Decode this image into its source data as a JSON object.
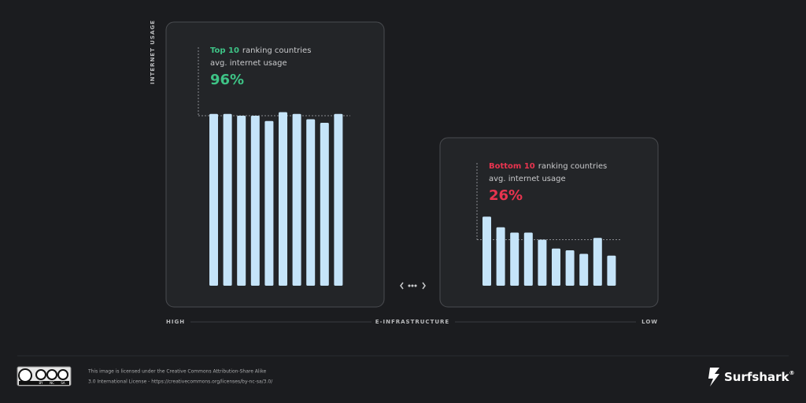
{
  "chart_data": [
    {
      "type": "bar",
      "highlight": "Top 10",
      "title": "ranking countries",
      "subtitle": "avg. internet usage",
      "average": {
        "value": 96,
        "label": "96%"
      },
      "accent": "#3ec386",
      "color": "#c5e4f9",
      "values": [
        97,
        97,
        96,
        96,
        93,
        98,
        97,
        94,
        92,
        97
      ]
    },
    {
      "type": "bar",
      "highlight": "Bottom 10",
      "title": "ranking countries",
      "subtitle": "avg. internet usage",
      "average": {
        "value": 26,
        "label": "26%"
      },
      "accent": "#e8344f",
      "color": "#c5e4f9",
      "values": [
        39,
        33,
        30,
        30,
        26,
        21,
        20,
        18,
        27,
        17
      ]
    }
  ],
  "y_axis_label": "INTERNET USAGE",
  "x_axis": {
    "left": "HIGH",
    "label": "E-INFRASTRUCTURE",
    "right": "LOW"
  },
  "footer": {
    "badge": [
      "BY",
      "NC",
      "SA"
    ],
    "license": [
      "This image is licensed under the Creative Commons Attribution-Share Alike",
      "3.0 International License - https://creativecommons.org/licenses/by-nc-sa/3.0/"
    ],
    "brand": "Surfshark",
    "mark": "®"
  }
}
